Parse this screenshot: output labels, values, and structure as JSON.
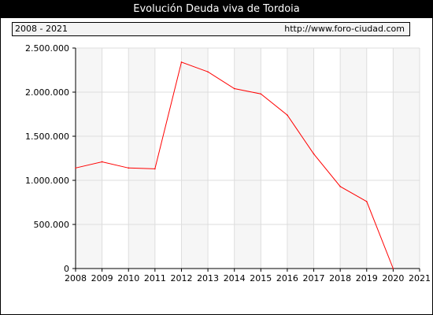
{
  "header": {
    "title": "Evolución Deuda viva de Tordoia",
    "period": "2008 - 2021",
    "source_url": "http://www.foro-ciudad.com"
  },
  "colors": {
    "line": "#ff0000",
    "plot_bg": "#f6f6f6",
    "grid": "#dddddd",
    "title_bg": "#000000"
  },
  "chart_data": {
    "type": "line",
    "title": "Evolución Deuda viva de Tordoia",
    "xlabel": "",
    "ylabel": "",
    "x": [
      2008,
      2009,
      2010,
      2011,
      2012,
      2013,
      2014,
      2015,
      2016,
      2017,
      2018,
      2019,
      2020
    ],
    "series": [
      {
        "values": [
          1140000,
          1210000,
          1140000,
          1130000,
          2340000,
          2230000,
          2040000,
          1980000,
          1740000,
          1300000,
          930000,
          760000,
          0
        ]
      }
    ],
    "xlim": [
      2008,
      2021
    ],
    "ylim": [
      0,
      2500000
    ],
    "x_ticks": [
      "2008",
      "2009",
      "2010",
      "2011",
      "2012",
      "2013",
      "2014",
      "2015",
      "2016",
      "2017",
      "2018",
      "2019",
      "2020",
      "2021"
    ],
    "y_ticks": [
      {
        "value": 0,
        "label": "0"
      },
      {
        "value": 500000,
        "label": "500.000"
      },
      {
        "value": 1000000,
        "label": "1.000.000"
      },
      {
        "value": 1500000,
        "label": "1.500.000"
      },
      {
        "value": 2000000,
        "label": "2.000.000"
      },
      {
        "value": 2500000,
        "label": "2.500.000"
      }
    ],
    "grid": true,
    "alternating_column_shading": true
  }
}
